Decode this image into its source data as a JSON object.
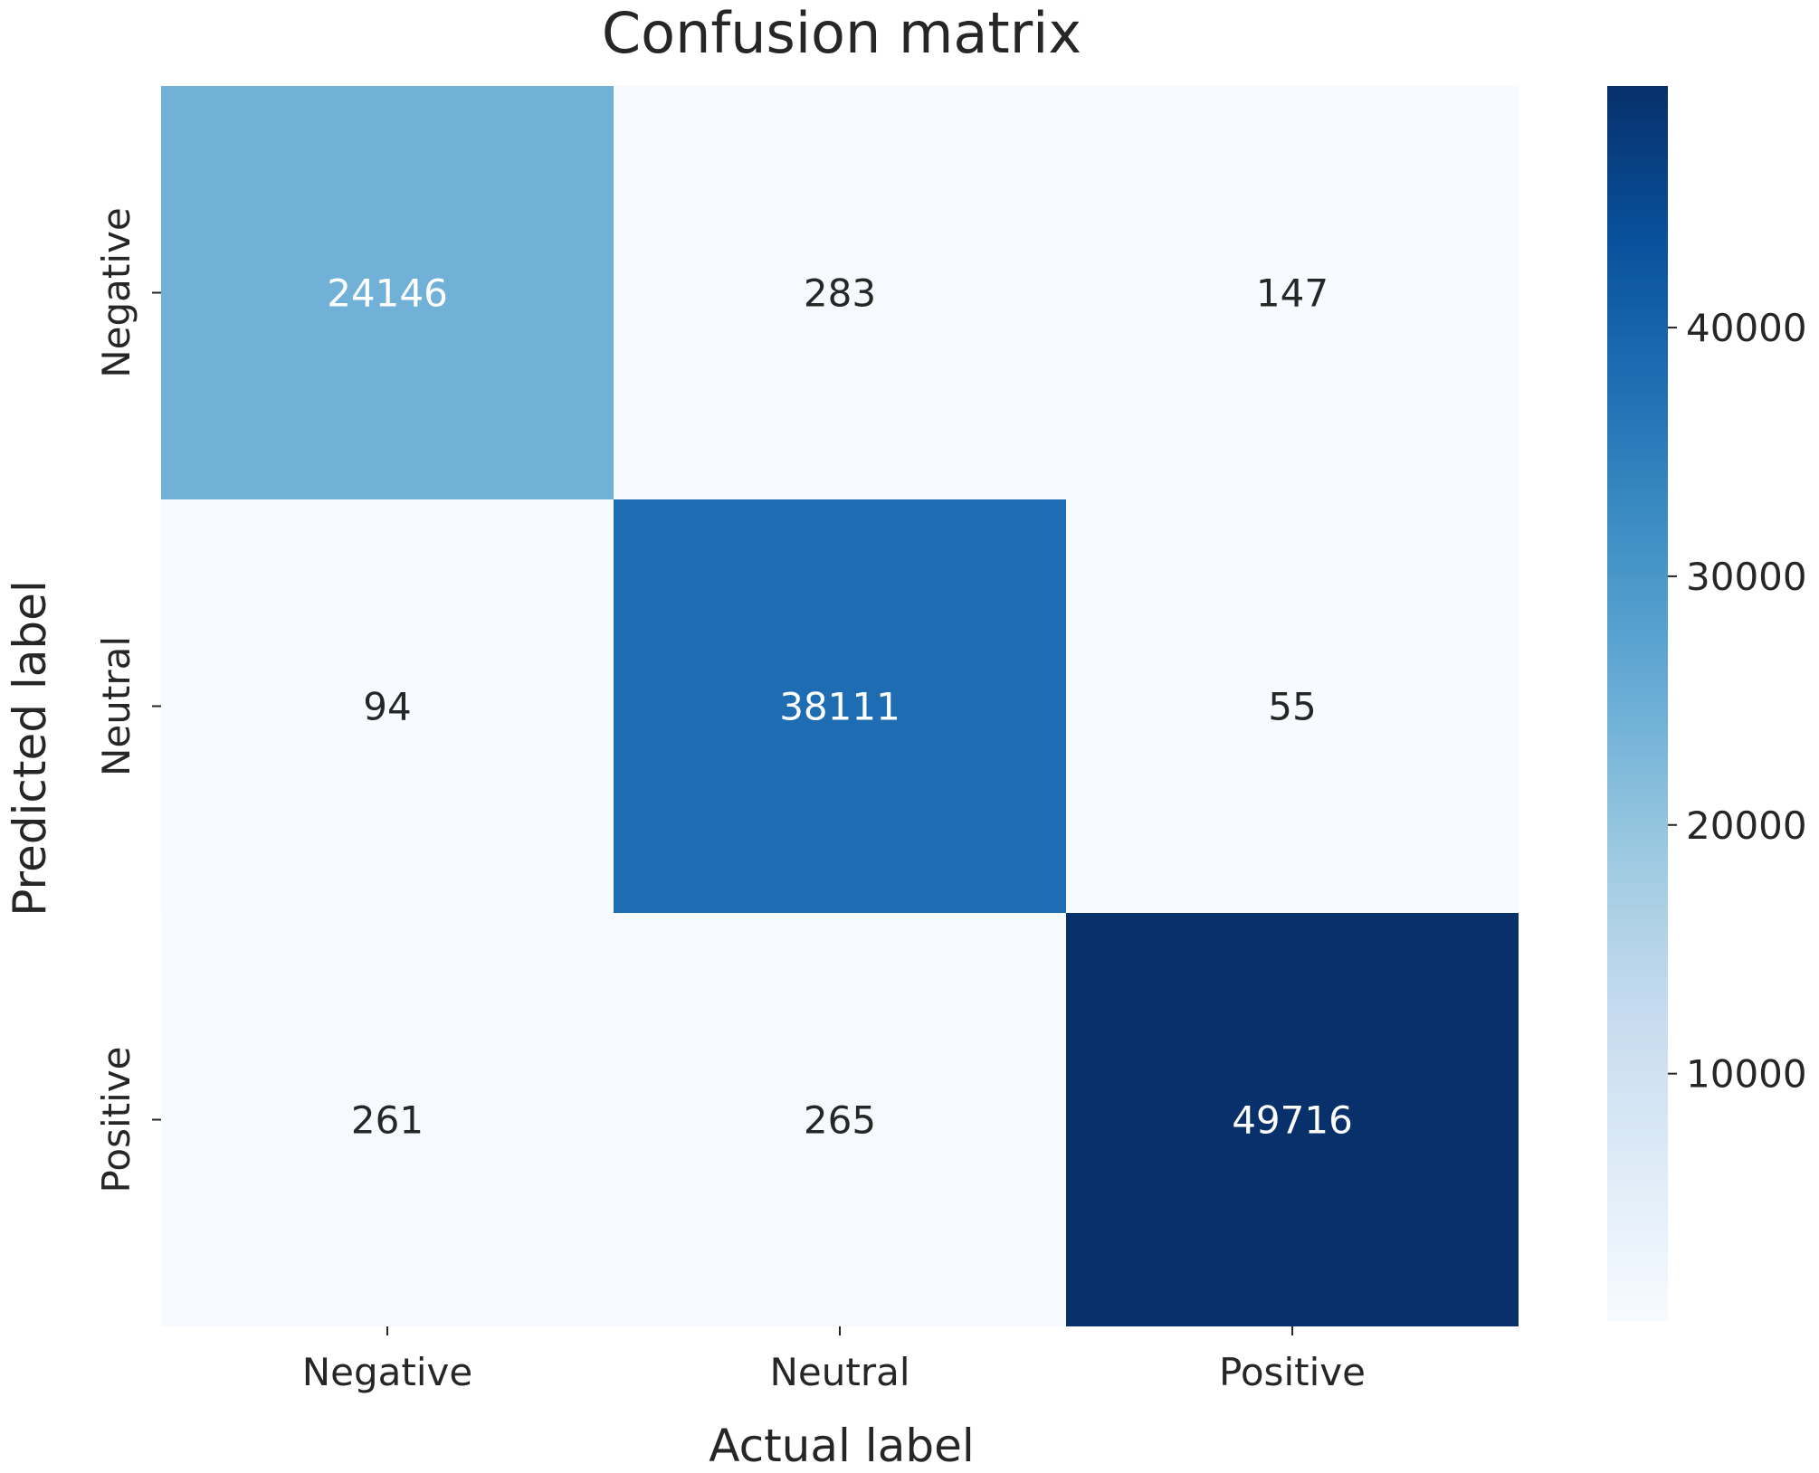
{
  "chart_data": {
    "type": "heatmap",
    "title": "Confusion matrix",
    "xlabel": "Actual label",
    "ylabel": "Predicted label",
    "x_categories": [
      "Negative",
      "Neutral",
      "Positive"
    ],
    "y_categories": [
      "Negative",
      "Neutral",
      "Positive"
    ],
    "values": [
      [
        24146,
        283,
        147
      ],
      [
        94,
        38111,
        55
      ],
      [
        261,
        265,
        49716
      ]
    ],
    "colormap": "Blues",
    "color_min": 55,
    "color_max": 49716,
    "colorbar_ticks": [
      10000,
      20000,
      30000,
      40000
    ],
    "colorbar_tick_labels": [
      "10000",
      "20000",
      "30000",
      "40000"
    ],
    "colors": {
      "text_dark": "#262626",
      "text_light": "#ffffff"
    }
  }
}
